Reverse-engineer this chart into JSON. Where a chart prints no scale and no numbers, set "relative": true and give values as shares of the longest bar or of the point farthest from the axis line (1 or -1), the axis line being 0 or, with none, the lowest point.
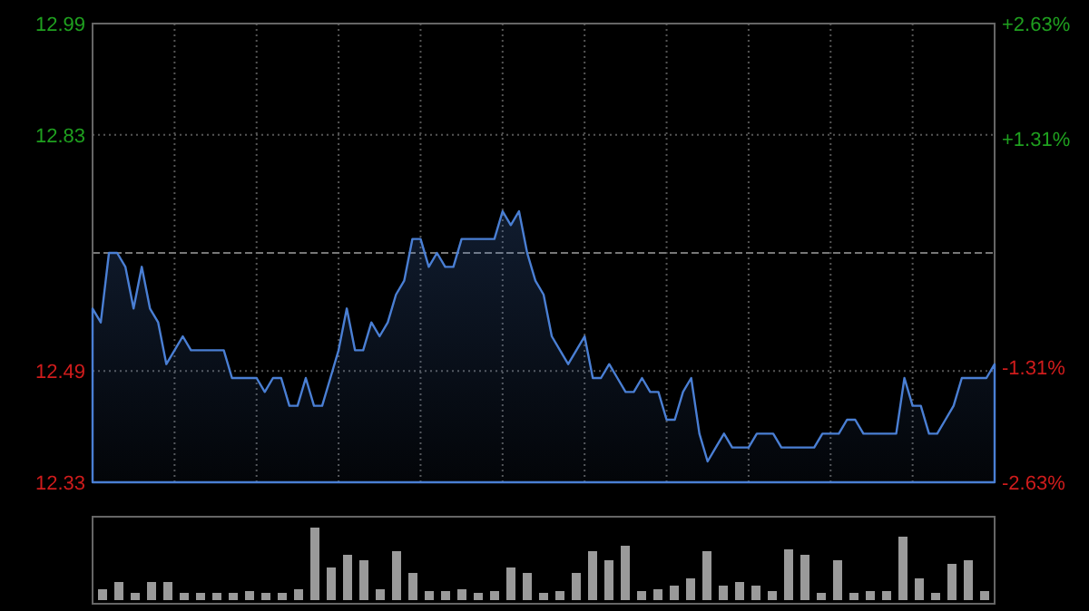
{
  "chart_data": [
    {
      "type": "area",
      "categories": [
        null,
        null,
        null,
        null,
        null,
        null,
        null,
        null,
        null,
        null,
        null,
        null,
        null,
        null,
        null,
        null,
        null,
        null,
        null,
        null,
        null,
        null,
        null,
        null,
        null,
        null,
        null,
        null,
        null,
        null,
        null,
        null,
        null,
        null,
        null,
        null,
        null,
        null,
        null,
        null,
        null,
        null,
        null,
        null,
        null,
        null,
        null,
        null,
        null,
        null,
        null,
        null,
        null,
        null,
        null,
        null,
        null,
        null,
        null,
        null,
        null,
        null,
        null,
        null,
        null,
        null,
        null,
        null,
        null,
        null,
        null,
        null,
        null,
        null,
        null,
        null,
        null,
        null,
        null,
        null,
        null,
        null,
        null,
        null,
        null,
        null,
        null,
        null,
        null,
        null,
        null,
        null,
        null,
        null,
        null,
        null,
        null,
        null,
        null,
        null,
        null,
        null,
        null,
        null,
        null,
        null,
        null,
        null,
        null,
        null,
        null
      ],
      "ylim": [
        12.33,
        12.99
      ],
      "yticks": [
        12.33,
        12.49,
        12.83,
        12.99
      ],
      "y2lim": [
        -2.63,
        2.63
      ],
      "y2ticks": [
        {
          "value": -2.63,
          "label": "-2.63%"
        },
        {
          "value": -1.31,
          "label": "-1.31%"
        },
        {
          "value": 1.31,
          "label": "+1.31%"
        },
        {
          "value": 2.63,
          "label": "+2.63%"
        }
      ],
      "grid": true,
      "ref_lines": [
        {
          "axis": "y",
          "value": 12.66,
          "line_style": "dashed"
        }
      ],
      "series": [
        {
          "color": "#4a7fd4",
          "values": [
            12.58,
            12.56,
            12.66,
            12.66,
            12.64,
            12.58,
            12.64,
            12.58,
            12.56,
            12.5,
            12.52,
            12.54,
            12.52,
            12.52,
            12.52,
            12.52,
            12.52,
            12.48,
            12.48,
            12.48,
            12.48,
            12.46,
            12.48,
            12.48,
            12.44,
            12.44,
            12.48,
            12.44,
            12.44,
            12.48,
            12.52,
            12.58,
            12.52,
            12.52,
            12.56,
            12.54,
            12.56,
            12.6,
            12.62,
            12.68,
            12.68,
            12.64,
            12.66,
            12.64,
            12.64,
            12.68,
            12.68,
            12.68,
            12.68,
            12.68,
            12.72,
            12.7,
            12.72,
            12.66,
            12.62,
            12.6,
            12.54,
            12.52,
            12.5,
            12.52,
            12.54,
            12.48,
            12.48,
            12.5,
            12.48,
            12.46,
            12.46,
            12.48,
            12.46,
            12.46,
            12.42,
            12.42,
            12.46,
            12.48,
            12.4,
            12.36,
            12.38,
            12.4,
            12.38,
            12.38,
            12.38,
            12.4,
            12.4,
            12.4,
            12.38,
            12.38,
            12.38,
            12.38,
            12.38,
            12.4,
            12.4,
            12.4,
            12.42,
            12.42,
            12.4,
            12.4,
            12.4,
            12.4,
            12.4,
            12.48,
            12.44,
            12.44,
            12.4,
            12.4,
            12.42,
            12.44,
            12.48,
            12.48,
            12.48,
            12.48,
            12.5
          ]
        }
      ]
    },
    {
      "type": "bar",
      "relative": true,
      "color": "#9a9a9a",
      "categories": [
        null,
        null,
        null,
        null,
        null,
        null,
        null,
        null,
        null,
        null,
        null,
        null,
        null,
        null,
        null,
        null,
        null,
        null,
        null,
        null,
        null,
        null,
        null,
        null,
        null,
        null,
        null,
        null,
        null,
        null,
        null,
        null,
        null,
        null,
        null,
        null,
        null,
        null,
        null,
        null,
        null,
        null,
        null,
        null,
        null,
        null,
        null,
        null,
        null,
        null,
        null,
        null,
        null,
        null,
        null
      ],
      "values": [
        0.15,
        0.25,
        0.1,
        0.25,
        0.25,
        0.1,
        0.1,
        0.1,
        0.1,
        0.12,
        0.1,
        0.1,
        0.15,
        1,
        0.45,
        0.62,
        0.55,
        0.15,
        0.68,
        0.38,
        0.12,
        0.12,
        0.15,
        0.1,
        0.12,
        0.45,
        0.38,
        0.1,
        0.12,
        0.38,
        0.68,
        0.55,
        0.75,
        0.12,
        0.15,
        0.2,
        0.3,
        0.68,
        0.2,
        0.25,
        0.2,
        0.12,
        0.7,
        0.62,
        0.1,
        0.55,
        0.1,
        0.12,
        0.12,
        0.88,
        0.3,
        0.1,
        0.5,
        0.55,
        0.12
      ]
    }
  ]
}
